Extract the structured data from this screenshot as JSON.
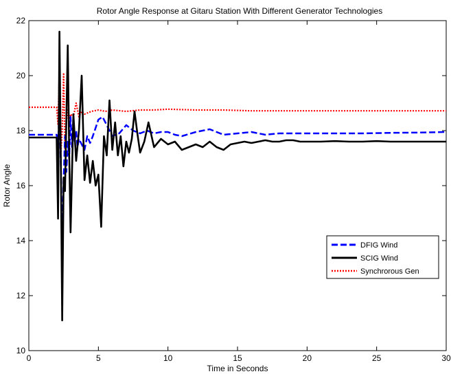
{
  "chart_data": {
    "type": "line",
    "title": "Rotor Angle Response at Gitaru Station With Different Generator Technologies",
    "xlabel": "Time in Seconds",
    "ylabel": "Rotor Angle",
    "xlim": [
      0,
      30
    ],
    "ylim": [
      10,
      22
    ],
    "xticks": [
      0,
      5,
      10,
      15,
      20,
      25,
      30
    ],
    "yticks": [
      10,
      12,
      14,
      16,
      18,
      20,
      22
    ],
    "grid": false,
    "legend_position": "lower-right",
    "series": [
      {
        "name": "DFIG Wind",
        "color": "#0000ff",
        "style": "dashed",
        "x": [
          0,
          2.0,
          2.1,
          2.2,
          2.3,
          2.4,
          2.5,
          2.6,
          2.7,
          2.8,
          2.9,
          3.0,
          3.1,
          3.2,
          3.3,
          3.4,
          3.5,
          3.6,
          3.8,
          4.0,
          4.2,
          4.4,
          4.6,
          4.8,
          5.0,
          5.3,
          5.6,
          6.0,
          6.5,
          7.0,
          7.5,
          8.0,
          8.5,
          9.0,
          9.5,
          10.0,
          10.5,
          11.0,
          12.0,
          13.0,
          14.0,
          15.0,
          16.0,
          17.0,
          18.0,
          19.0,
          20.0,
          22.0,
          24.0,
          26.0,
          28.0,
          30.0
        ],
        "y": [
          17.85,
          17.85,
          17.5,
          18.8,
          16.8,
          13.9,
          16.2,
          17.8,
          16.5,
          17.6,
          17.0,
          18.5,
          17.4,
          18.5,
          17.6,
          18.0,
          17.4,
          17.7,
          17.5,
          17.3,
          17.8,
          17.55,
          17.8,
          18.1,
          18.4,
          18.5,
          18.2,
          17.8,
          17.9,
          18.2,
          18.0,
          17.9,
          18.0,
          17.9,
          17.95,
          17.95,
          17.85,
          17.8,
          17.95,
          18.05,
          17.85,
          17.9,
          17.95,
          17.85,
          17.9,
          17.9,
          17.9,
          17.9,
          17.9,
          17.92,
          17.93,
          17.95
        ]
      },
      {
        "name": "SCIG Wind",
        "color": "#000000",
        "style": "solid",
        "x": [
          0,
          2.0,
          2.1,
          2.2,
          2.3,
          2.4,
          2.5,
          2.6,
          2.8,
          2.9,
          3.0,
          3.2,
          3.4,
          3.6,
          3.8,
          4.0,
          4.2,
          4.4,
          4.6,
          4.8,
          5.0,
          5.2,
          5.4,
          5.6,
          5.8,
          6.0,
          6.2,
          6.4,
          6.6,
          6.8,
          7.0,
          7.2,
          7.4,
          7.6,
          7.8,
          8.0,
          8.3,
          8.6,
          9.0,
          9.5,
          10.0,
          10.5,
          11.0,
          11.5,
          12.0,
          12.5,
          13.0,
          13.5,
          14.0,
          14.5,
          15.0,
          15.5,
          16.0,
          16.5,
          17.0,
          17.5,
          18.0,
          18.5,
          19.0,
          19.5,
          20.0,
          21.0,
          22.0,
          23.0,
          24.0,
          25.0,
          26.0,
          27.0,
          28.0,
          29.0,
          30.0
        ],
        "y": [
          17.75,
          17.75,
          14.8,
          21.6,
          17.0,
          11.1,
          16.3,
          15.8,
          21.1,
          17.2,
          14.3,
          18.6,
          16.9,
          18.0,
          20.0,
          16.2,
          17.1,
          16.1,
          16.9,
          16.0,
          16.4,
          14.5,
          17.8,
          17.1,
          19.1,
          17.3,
          18.3,
          17.1,
          17.8,
          16.7,
          17.6,
          17.2,
          17.7,
          18.7,
          17.9,
          17.2,
          17.6,
          18.3,
          17.4,
          17.7,
          17.5,
          17.6,
          17.3,
          17.4,
          17.5,
          17.4,
          17.6,
          17.4,
          17.3,
          17.5,
          17.55,
          17.6,
          17.55,
          17.6,
          17.65,
          17.6,
          17.6,
          17.65,
          17.65,
          17.6,
          17.6,
          17.6,
          17.62,
          17.6,
          17.6,
          17.62,
          17.6,
          17.6,
          17.6,
          17.6,
          17.6
        ]
      },
      {
        "name": "Synchrorous Gen",
        "color": "#ff0000",
        "style": "dotted",
        "x": [
          0,
          2.0,
          2.1,
          2.2,
          2.3,
          2.4,
          2.5,
          2.6,
          2.7,
          2.8,
          2.9,
          3.0,
          3.2,
          3.4,
          3.6,
          3.8,
          4.0,
          4.5,
          5.0,
          5.5,
          6.0,
          7.0,
          8.0,
          9.0,
          10.0,
          12.0,
          14.0,
          16.0,
          18.0,
          20.0,
          22.0,
          24.0,
          26.0,
          28.0,
          30.0
        ],
        "y": [
          18.85,
          18.85,
          18.2,
          20.4,
          17.2,
          18.0,
          20.1,
          17.3,
          18.3,
          18.8,
          18.3,
          18.6,
          18.5,
          19.0,
          18.5,
          18.7,
          18.6,
          18.7,
          18.75,
          18.7,
          18.75,
          18.7,
          18.75,
          18.75,
          18.78,
          18.75,
          18.75,
          18.72,
          18.72,
          18.72,
          18.72,
          18.72,
          18.72,
          18.72,
          18.72
        ]
      }
    ]
  }
}
